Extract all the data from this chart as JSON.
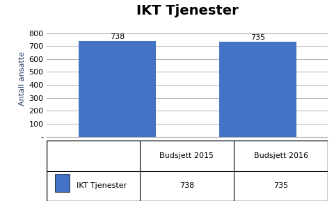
{
  "title": "IKT Tjenester",
  "categories": [
    "Budsjett 2015",
    "Budsjett 2016"
  ],
  "values": [
    738,
    735
  ],
  "bar_color": "#4472C4",
  "ylabel": "Antall ansatte",
  "ylim": [
    0,
    900
  ],
  "yticks": [
    0,
    100,
    200,
    300,
    400,
    500,
    600,
    700,
    800
  ],
  "ytick_labels": [
    "-",
    "100",
    "200",
    "300",
    "400",
    "500",
    "600",
    "700",
    "800"
  ],
  "legend_label": "IKT Tjenester",
  "title_fontsize": 14,
  "axis_fontsize": 8,
  "bar_label_fontsize": 8,
  "ylabel_fontsize": 8,
  "background_color": "#ffffff",
  "grid_color": "#b0b0b0",
  "table_values": [
    "738",
    "735"
  ]
}
